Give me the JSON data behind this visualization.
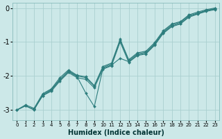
{
  "xlabel": "Humidex (Indice chaleur)",
  "xlim": [
    -0.5,
    23.5
  ],
  "ylim": [
    -3.3,
    0.15
  ],
  "bg_color": "#cce8e8",
  "line_color": "#2d7d7d",
  "grid_color": "#aacfcf",
  "xticks": [
    0,
    1,
    2,
    3,
    4,
    5,
    6,
    7,
    8,
    9,
    10,
    11,
    12,
    13,
    14,
    15,
    16,
    17,
    18,
    19,
    20,
    21,
    22,
    23
  ],
  "yticks": [
    0,
    -1,
    -2,
    -3
  ],
  "lines": [
    {
      "x": [
        0,
        1,
        2,
        3,
        4,
        5,
        6,
        7,
        8,
        9,
        10,
        11,
        12,
        13,
        14,
        15,
        16,
        17,
        18,
        19,
        20,
        21,
        22,
        23
      ],
      "y": [
        -3.0,
        -2.88,
        -3.0,
        -2.55,
        -2.4,
        -2.1,
        -1.85,
        -2.0,
        -2.05,
        -2.3,
        -1.75,
        -1.65,
        -0.95,
        -1.55,
        -1.35,
        -1.3,
        -1.05,
        -0.7,
        -0.5,
        -0.42,
        -0.22,
        -0.15,
        -0.07,
        -0.02
      ]
    },
    {
      "x": [
        0,
        1,
        2,
        3,
        4,
        5,
        6,
        7,
        8,
        9,
        10,
        11,
        12,
        13,
        14,
        15,
        16,
        17,
        18,
        19,
        20,
        21,
        22,
        23
      ],
      "y": [
        -3.0,
        -2.88,
        -2.98,
        -2.58,
        -2.45,
        -2.15,
        -1.9,
        -2.05,
        -2.1,
        -2.35,
        -1.8,
        -1.7,
        -1.0,
        -1.6,
        -1.4,
        -1.35,
        -1.1,
        -0.75,
        -0.55,
        -0.47,
        -0.27,
        -0.18,
        -0.1,
        -0.05
      ]
    },
    {
      "x": [
        0,
        1,
        2,
        3,
        4,
        5,
        6,
        7,
        8,
        9,
        10,
        11,
        12,
        13,
        14,
        15,
        16,
        17,
        18,
        19,
        20,
        21,
        22,
        23
      ],
      "y": [
        -3.0,
        -2.85,
        -2.95,
        -2.52,
        -2.38,
        -2.05,
        -1.82,
        -1.98,
        -2.02,
        -2.28,
        -1.72,
        -1.62,
        -0.92,
        -1.52,
        -1.32,
        -1.27,
        -1.02,
        -0.67,
        -0.47,
        -0.4,
        -0.2,
        -0.12,
        -0.05,
        0.0
      ]
    },
    {
      "x": [
        2,
        3,
        4,
        5,
        6,
        7,
        8,
        9,
        10,
        11,
        12,
        13,
        14,
        15,
        16,
        17,
        18,
        19,
        20,
        21,
        22,
        23
      ],
      "y": [
        -2.98,
        -2.58,
        -2.42,
        -2.12,
        -1.87,
        -2.02,
        -2.5,
        -2.9,
        -1.78,
        -1.68,
        -1.48,
        -1.58,
        -1.38,
        -1.33,
        -1.08,
        -0.73,
        -0.53,
        -0.45,
        -0.25,
        -0.17,
        -0.08,
        -0.03
      ]
    }
  ]
}
